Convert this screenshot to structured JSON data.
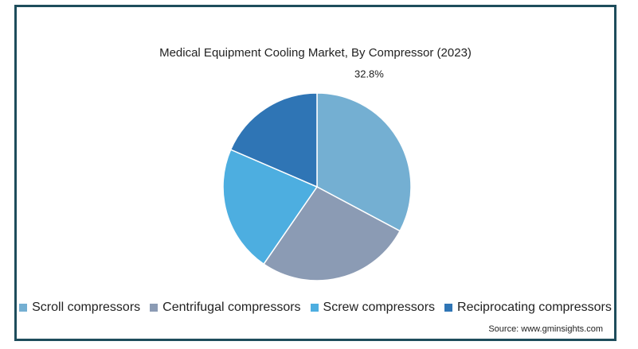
{
  "chart_data": {
    "type": "pie",
    "title": "Medical Equipment Cooling Market, By Compressor (2023)",
    "series": [
      {
        "name": "Scroll compressors",
        "value": 32.8,
        "label": "32.8%",
        "color": "#74afd2"
      },
      {
        "name": "Centrifugal compressors",
        "value": 26.8,
        "label": "",
        "color": "#8b9bb4"
      },
      {
        "name": "Screw compressors",
        "value": 21.9,
        "label": "",
        "color": "#4daee0"
      },
      {
        "name": "Reciprocating compressors",
        "value": 18.5,
        "label": "",
        "color": "#2f75b5"
      }
    ],
    "legend_position": "bottom"
  },
  "source": "Source: www.gminsights.com"
}
